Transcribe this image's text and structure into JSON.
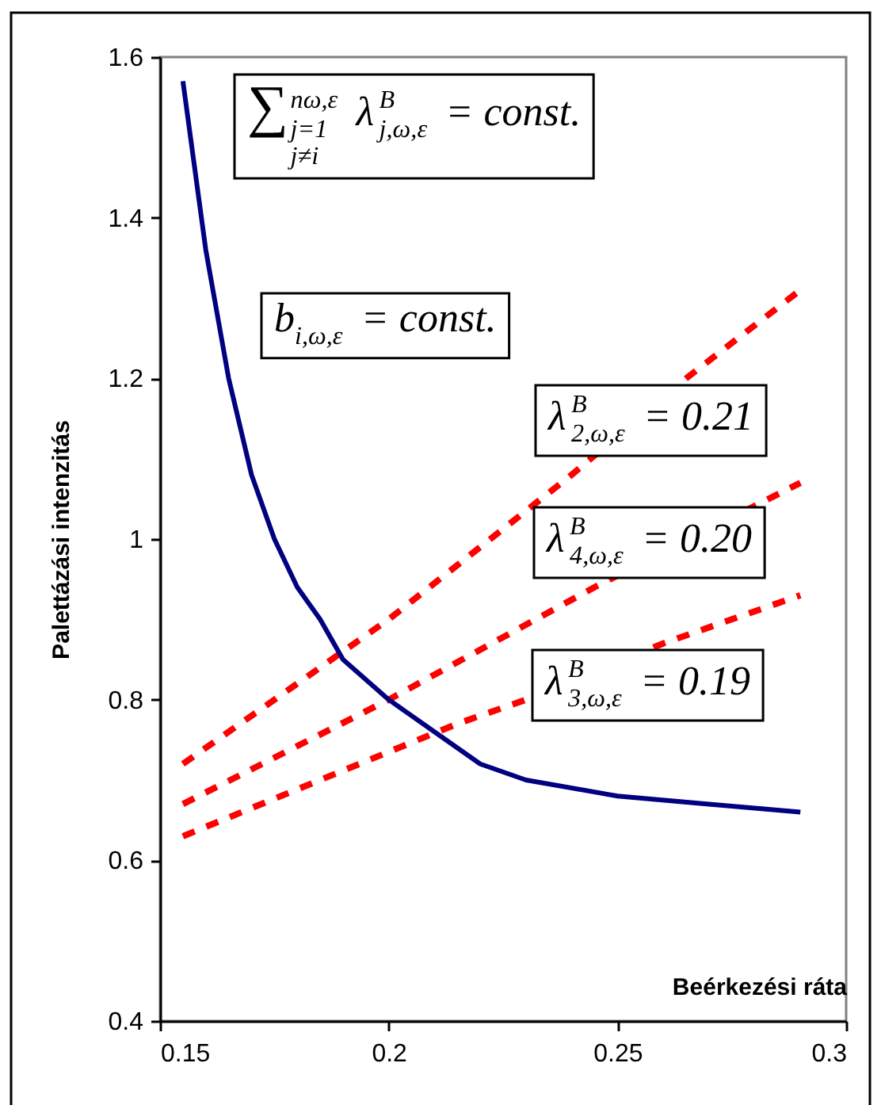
{
  "chart_data": {
    "type": "line",
    "xlabel": "Beérkezési ráta",
    "ylabel": "Palettázási intenzitás",
    "xlim": [
      0.15,
      0.3
    ],
    "xticks": [
      0.15,
      0.2,
      0.25,
      0.3
    ],
    "ylim": [
      0.4,
      1.6
    ],
    "yticks": [
      0.4,
      0.6,
      0.8,
      1,
      1.2,
      1.4,
      1.6
    ],
    "grid": false,
    "series": [
      {
        "color": "#ff0000",
        "line_style": "dashed",
        "x": [
          0.155,
          0.17,
          0.185,
          0.2,
          0.22,
          0.24,
          0.265,
          0.29
        ],
        "values": [
          0.72,
          0.78,
          0.84,
          0.9,
          0.99,
          1.08,
          1.2,
          1.31
        ]
      },
      {
        "color": "#ff0000",
        "line_style": "dashed",
        "x": [
          0.155,
          0.2,
          0.245,
          0.29
        ],
        "values": [
          0.67,
          0.8,
          0.94,
          1.07
        ]
      },
      {
        "color": "#ff0000",
        "line_style": "dashed",
        "x": [
          0.155,
          0.185,
          0.215,
          0.23,
          0.26,
          0.29
        ],
        "values": [
          0.63,
          0.7,
          0.77,
          0.8,
          0.87,
          0.93
        ]
      },
      {
        "color": "#000080",
        "line_style": "solid",
        "x": [
          0.155,
          0.16,
          0.165,
          0.17,
          0.175,
          0.18,
          0.185,
          0.19,
          0.2,
          0.21,
          0.22,
          0.23,
          0.25,
          0.27,
          0.29
        ],
        "values": [
          1.57,
          1.36,
          1.2,
          1.08,
          1.0,
          0.94,
          0.9,
          0.85,
          0.8,
          0.76,
          0.72,
          0.7,
          0.68,
          0.67,
          0.66
        ]
      }
    ],
    "annotations": [
      "∑$^{nω,ε}$$_{j=1\nj≠i}$ λ$^{B}$$_{j,ω,ε}$ = const.",
      "b$_{i,ω,ε}$ = const.",
      "λ$^{B}$$_{2,ω,ε}$ = 0.21",
      "λ$^{B}$$_{4,ω,ε}$ = 0.20",
      "λ$^{B}$$_{3,ω,ε}$ = 0.19"
    ]
  }
}
